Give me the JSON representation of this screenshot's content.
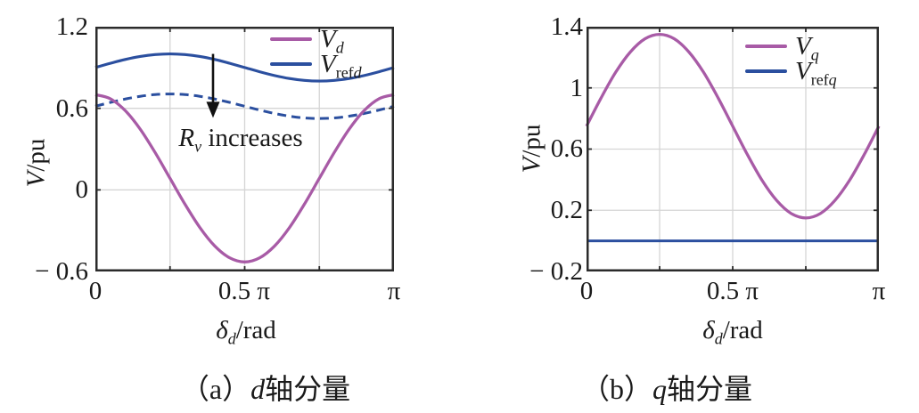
{
  "chart_data": [
    {
      "type": "line",
      "panel": "a",
      "caption": {
        "prefix": "（a）",
        "variable": "d",
        "suffix": "轴分量"
      },
      "xlabel": {
        "symbol": "δ",
        "sub": "d",
        "rest": "/rad"
      },
      "ylabel": {
        "symbol": "V",
        "rest": "/pu"
      },
      "xlim_pi": [
        0,
        1
      ],
      "ylim": [
        -0.6,
        1.2
      ],
      "grid": true,
      "legend_position": "top-right",
      "colors": {
        "frame": "#2b2b2b",
        "grid": "#d5d5d5",
        "arrow": "#111111"
      },
      "x_ticks": [
        {
          "pi": 0,
          "label": "0"
        },
        {
          "pi": 0.25,
          "label": ""
        },
        {
          "pi": 0.5,
          "label": "0.5 π"
        },
        {
          "pi": 0.75,
          "label": ""
        },
        {
          "pi": 1,
          "label": "π"
        }
      ],
      "y_ticks": [
        {
          "v": 1.2,
          "label": "1.2"
        },
        {
          "v": 0.6,
          "label": "0.6"
        },
        {
          "v": 0,
          "label": "0"
        },
        {
          "v": -0.6,
          "label": "− 0.6"
        }
      ],
      "legend": [
        {
          "label_main": "V",
          "label_sub_roman": "",
          "label_sub_italic": "d",
          "color": "#a85ba6",
          "style": "solid"
        },
        {
          "label_main": "V",
          "label_sub_roman": "ref",
          "label_sub_italic": "d",
          "color": "#2b4f9f",
          "style": "solid"
        }
      ],
      "annotation": {
        "r_main": "R",
        "r_sub": "v",
        "rest": " increases",
        "arrow_at_x_pi": 0.394,
        "arrow_from_v": 1.0,
        "arrow_to_v": 0.53
      },
      "series": [
        {
          "name": "Vrefd",
          "color": "#2b4f9f",
          "dash": "solid",
          "width": 3.1,
          "x_pi": [
            0,
            0.05,
            0.1,
            0.15,
            0.2,
            0.25,
            0.3,
            0.35,
            0.4,
            0.45,
            0.5,
            0.55,
            0.6,
            0.65,
            0.7,
            0.75,
            0.8,
            0.85,
            0.9,
            0.95,
            1
          ],
          "y": [
            0.9,
            0.931,
            0.959,
            0.981,
            0.995,
            1.0,
            0.995,
            0.981,
            0.959,
            0.931,
            0.9,
            0.869,
            0.841,
            0.819,
            0.805,
            0.8,
            0.805,
            0.819,
            0.841,
            0.869,
            0.9
          ]
        },
        {
          "name": "Vrefd_Rv_increased",
          "color": "#2b4f9f",
          "dash": "dashed",
          "width": 3,
          "x_pi": [
            0,
            0.05,
            0.1,
            0.15,
            0.2,
            0.25,
            0.3,
            0.35,
            0.4,
            0.45,
            0.5,
            0.55,
            0.6,
            0.65,
            0.7,
            0.75,
            0.8,
            0.85,
            0.9,
            0.95,
            1
          ],
          "y": [
            0.615,
            0.643,
            0.668,
            0.688,
            0.701,
            0.705,
            0.701,
            0.688,
            0.668,
            0.643,
            0.615,
            0.587,
            0.562,
            0.542,
            0.529,
            0.525,
            0.529,
            0.542,
            0.562,
            0.587,
            0.615
          ]
        },
        {
          "name": "Vd",
          "color": "#a85ba6",
          "dash": "solid",
          "width": 3.3,
          "x_pi": [
            0,
            0.05,
            0.1,
            0.15,
            0.2,
            0.25,
            0.3,
            0.35,
            0.4,
            0.45,
            0.5,
            0.55,
            0.6,
            0.65,
            0.7,
            0.75,
            0.8,
            0.85,
            0.9,
            0.95,
            1
          ],
          "y": [
            0.7,
            0.67,
            0.583,
            0.447,
            0.275,
            0.085,
            -0.105,
            -0.277,
            -0.413,
            -0.5,
            -0.53,
            -0.5,
            -0.413,
            -0.277,
            -0.105,
            0.085,
            0.275,
            0.447,
            0.583,
            0.67,
            0.7
          ]
        }
      ]
    },
    {
      "type": "line",
      "panel": "b",
      "caption": {
        "prefix": "（b）",
        "variable": "q",
        "suffix": "轴分量"
      },
      "xlabel": {
        "symbol": "δ",
        "sub": "d",
        "rest": "/rad"
      },
      "ylabel": {
        "symbol": "V",
        "rest": "/pu"
      },
      "xlim_pi": [
        0,
        1
      ],
      "ylim": [
        -0.2,
        1.4
      ],
      "grid": true,
      "legend_position": "top-right",
      "colors": {
        "frame": "#2b2b2b",
        "grid": "#d5d5d5",
        "arrow": "#111111"
      },
      "x_ticks": [
        {
          "pi": 0,
          "label": "0"
        },
        {
          "pi": 0.25,
          "label": ""
        },
        {
          "pi": 0.5,
          "label": "0.5 π"
        },
        {
          "pi": 0.75,
          "label": ""
        },
        {
          "pi": 1,
          "label": "π"
        }
      ],
      "y_ticks": [
        {
          "v": 1.4,
          "label": "1.4"
        },
        {
          "v": 1,
          "label": "1"
        },
        {
          "v": 0.6,
          "label": "0.6"
        },
        {
          "v": 0.2,
          "label": "0.2"
        },
        {
          "v": -0.2,
          "label": "− 0.2"
        }
      ],
      "legend": [
        {
          "label_main": "V",
          "label_sub_roman": "",
          "label_sub_italic": "q",
          "color": "#a85ba6",
          "style": "solid"
        },
        {
          "label_main": "V",
          "label_sub_roman": "ref",
          "label_sub_italic": "q",
          "color": "#2b4f9f",
          "style": "solid"
        }
      ],
      "series": [
        {
          "name": "Vq",
          "color": "#a85ba6",
          "dash": "solid",
          "width": 3.3,
          "x_pi": [
            0,
            0.05,
            0.1,
            0.15,
            0.2,
            0.25,
            0.3,
            0.35,
            0.4,
            0.45,
            0.5,
            0.55,
            0.6,
            0.65,
            0.7,
            0.75,
            0.8,
            0.85,
            0.9,
            0.95,
            1
          ],
          "y": [
            0.75,
            0.935,
            1.103,
            1.235,
            1.321,
            1.35,
            1.321,
            1.235,
            1.103,
            0.935,
            0.75,
            0.565,
            0.397,
            0.265,
            0.179,
            0.15,
            0.179,
            0.265,
            0.397,
            0.565,
            0.75
          ]
        },
        {
          "name": "Vrefq",
          "color": "#2b4f9f",
          "dash": "solid",
          "width": 3.1,
          "x_pi": [
            0,
            1
          ],
          "y": [
            0,
            0
          ]
        }
      ]
    }
  ]
}
